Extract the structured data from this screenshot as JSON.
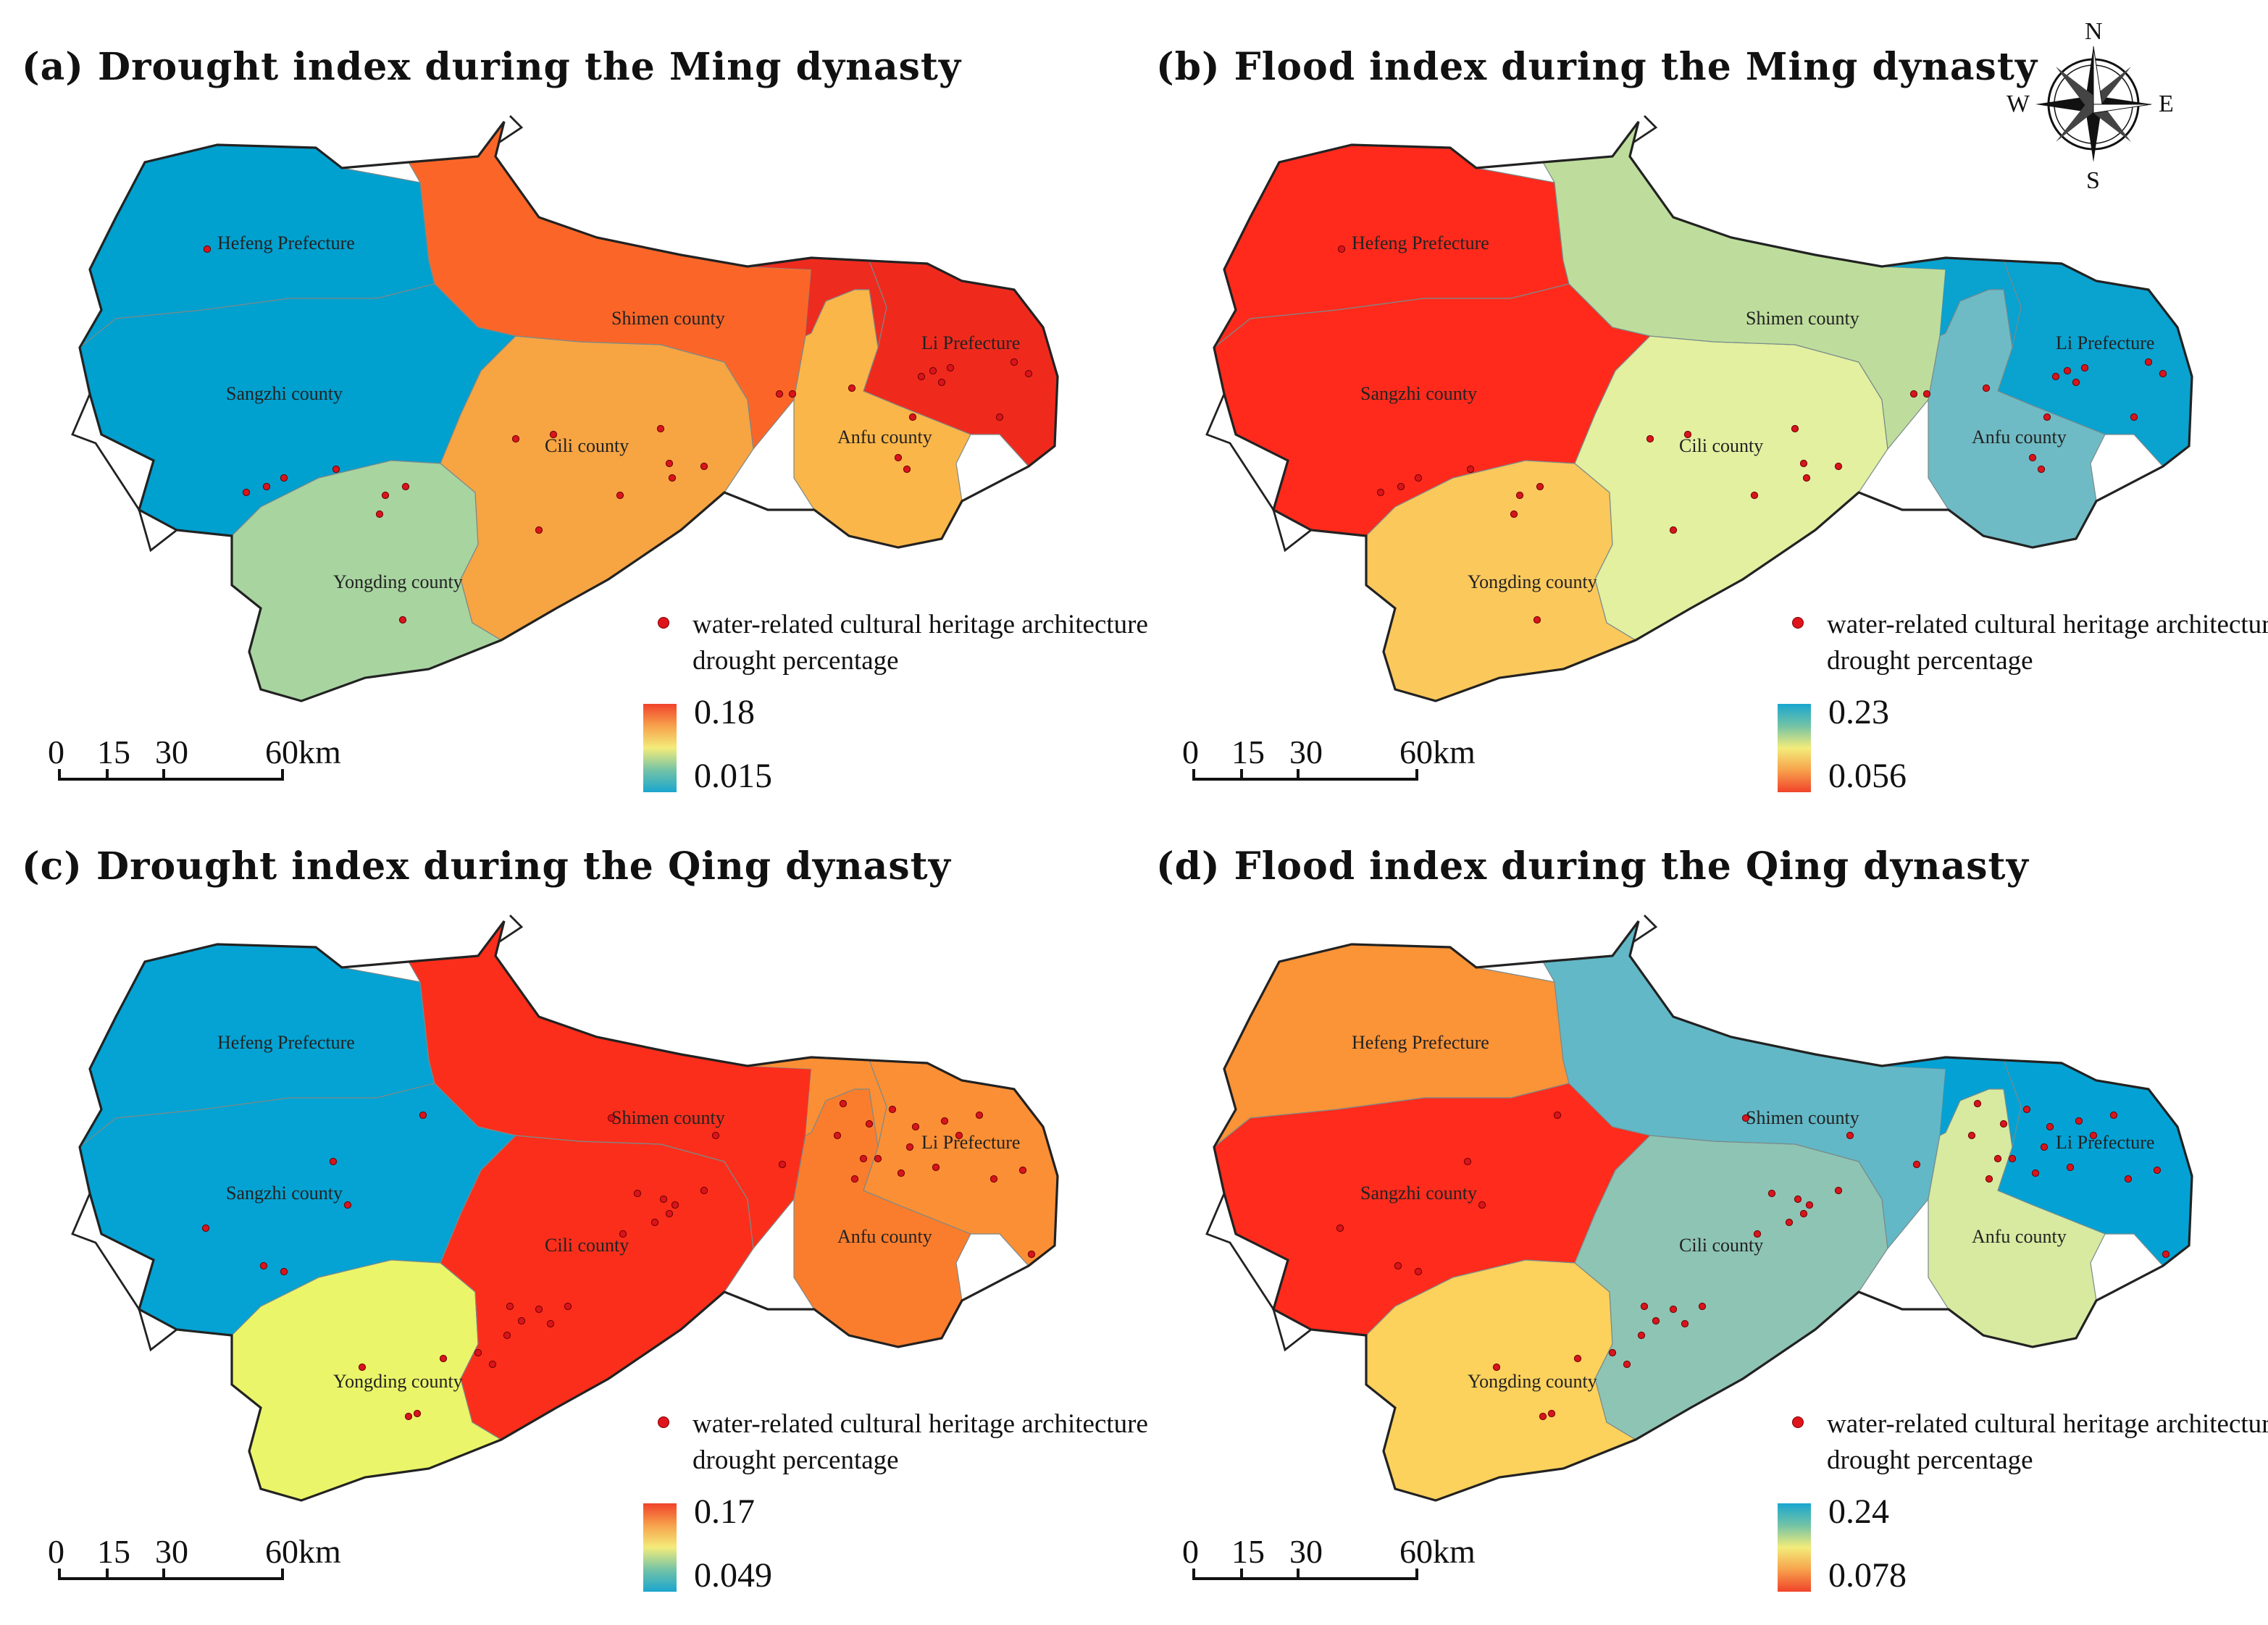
{
  "compass": {
    "n": "N",
    "s": "S",
    "e": "E",
    "w": "W"
  },
  "regions": {
    "hefeng": "Hefeng Prefecture",
    "sangzhi": "Sangzhi county",
    "yongding": "Yongding county",
    "cili": "Cili county",
    "shimen": "Shimen county",
    "anfu": "Anfu county",
    "li": "Li Prefecture"
  },
  "scale_bar": {
    "t0": "0",
    "t1": "15",
    "t2": "30",
    "t3": "60km"
  },
  "legend_points": "water-related cultural heritage architecture drought percentage",
  "panels": [
    {
      "id": "a",
      "title": "(a) Drought index during the Ming dynasty",
      "legend_max": "0.18",
      "legend_min": "0.015",
      "ramp": "drought",
      "fills": {
        "hefeng": "#00a0cf",
        "sangzhi": "#00a0cf",
        "yongding": "#a8d4a0",
        "cili": "#f7a443",
        "shimen": "#fb6628",
        "anfu": "#fbb649",
        "li": "#ef2a1d",
        "shimen_east": "#ee2b1f"
      },
      "dots": [
        [
          143,
          172
        ],
        [
          170,
          340
        ],
        [
          184,
          336
        ],
        [
          196,
          330
        ],
        [
          232,
          324
        ],
        [
          262,
          355
        ],
        [
          266,
          342
        ],
        [
          280,
          336
        ],
        [
          278,
          428
        ],
        [
          372,
          366
        ],
        [
          356,
          303
        ],
        [
          382,
          300
        ],
        [
          428,
          342
        ],
        [
          456,
          296
        ],
        [
          462,
          320
        ],
        [
          464,
          330
        ],
        [
          486,
          322
        ],
        [
          538,
          272
        ],
        [
          547,
          272
        ],
        [
          588,
          268
        ],
        [
          620,
          316
        ],
        [
          626,
          324
        ],
        [
          630,
          288
        ],
        [
          636,
          260
        ],
        [
          644,
          256
        ],
        [
          650,
          264
        ],
        [
          656,
          254
        ],
        [
          690,
          288
        ],
        [
          700,
          250
        ],
        [
          710,
          258
        ]
      ]
    },
    {
      "id": "b",
      "title": "(b) Flood index during the Ming dynasty",
      "legend_max": "0.23",
      "legend_min": "0.056",
      "ramp": "flood",
      "fills": {
        "hefeng": "#ff2a1c",
        "sangzhi": "#ff2a1c",
        "yongding": "#fbc85c",
        "cili": "#e2f0a0",
        "shimen": "#bedd9c",
        "anfu": "#6fbbc5",
        "li": "#0aa2cf",
        "shimen_east": "#0aa2cf"
      },
      "dots": [
        [
          143,
          172
        ],
        [
          170,
          340
        ],
        [
          184,
          336
        ],
        [
          196,
          330
        ],
        [
          232,
          324
        ],
        [
          262,
          355
        ],
        [
          266,
          342
        ],
        [
          280,
          336
        ],
        [
          278,
          428
        ],
        [
          372,
          366
        ],
        [
          356,
          303
        ],
        [
          382,
          300
        ],
        [
          428,
          342
        ],
        [
          456,
          296
        ],
        [
          462,
          320
        ],
        [
          464,
          330
        ],
        [
          486,
          322
        ],
        [
          538,
          272
        ],
        [
          547,
          272
        ],
        [
          588,
          268
        ],
        [
          620,
          316
        ],
        [
          626,
          324
        ],
        [
          630,
          288
        ],
        [
          636,
          260
        ],
        [
          644,
          256
        ],
        [
          650,
          264
        ],
        [
          656,
          254
        ],
        [
          690,
          288
        ],
        [
          700,
          250
        ],
        [
          710,
          258
        ]
      ]
    },
    {
      "id": "c",
      "title": "(c) Drought index during the Qing dynasty",
      "legend_max": "0.17",
      "legend_min": "0.049",
      "ramp": "drought",
      "fills": {
        "hefeng": "#04a3d3",
        "sangzhi": "#04a3d3",
        "yongding": "#ebf56a",
        "cili": "#fb2e1b",
        "shimen": "#fb2e1b",
        "anfu": "#fa7d2d",
        "li": "#fb8f35",
        "shimen_east": "#fb8f35"
      },
      "dots": [
        [
          142,
          296
        ],
        [
          182,
          322
        ],
        [
          196,
          326
        ],
        [
          230,
          250
        ],
        [
          240,
          280
        ],
        [
          250,
          392
        ],
        [
          282,
          426
        ],
        [
          288,
          424
        ],
        [
          292,
          218
        ],
        [
          306,
          386
        ],
        [
          330,
          382
        ],
        [
          340,
          390
        ],
        [
          350,
          370
        ],
        [
          352,
          350
        ],
        [
          360,
          360
        ],
        [
          372,
          352
        ],
        [
          380,
          362
        ],
        [
          392,
          350
        ],
        [
          422,
          220
        ],
        [
          430,
          300
        ],
        [
          440,
          272
        ],
        [
          452,
          292
        ],
        [
          458,
          276
        ],
        [
          462,
          286
        ],
        [
          466,
          280
        ],
        [
          486,
          270
        ],
        [
          494,
          232
        ],
        [
          540,
          252
        ],
        [
          578,
          232
        ],
        [
          582,
          210
        ],
        [
          590,
          262
        ],
        [
          596,
          248
        ],
        [
          600,
          224
        ],
        [
          606,
          248
        ],
        [
          616,
          214
        ],
        [
          622,
          258
        ],
        [
          628,
          240
        ],
        [
          632,
          226
        ],
        [
          646,
          254
        ],
        [
          652,
          222
        ],
        [
          662,
          232
        ],
        [
          676,
          218
        ],
        [
          686,
          262
        ],
        [
          706,
          256
        ],
        [
          712,
          314
        ]
      ]
    },
    {
      "id": "d",
      "title": "(d) Flood index during the Qing dynasty",
      "legend_max": "0.24",
      "legend_min": "0.078",
      "ramp": "flood",
      "fills": {
        "hefeng": "#fb9337",
        "sangzhi": "#ff2b1c",
        "yongding": "#fcd15c",
        "cili": "#8ec4b4",
        "shimen": "#62b8c6",
        "anfu": "#d7eaa0",
        "li": "#04a2d4",
        "shimen_east": "#04a2d4"
      },
      "dots": [
        [
          142,
          296
        ],
        [
          182,
          322
        ],
        [
          196,
          326
        ],
        [
          230,
          250
        ],
        [
          240,
          280
        ],
        [
          250,
          392
        ],
        [
          282,
          426
        ],
        [
          288,
          424
        ],
        [
          292,
          218
        ],
        [
          306,
          386
        ],
        [
          330,
          382
        ],
        [
          340,
          390
        ],
        [
          350,
          370
        ],
        [
          352,
          350
        ],
        [
          360,
          360
        ],
        [
          372,
          352
        ],
        [
          380,
          362
        ],
        [
          392,
          350
        ],
        [
          422,
          220
        ],
        [
          430,
          300
        ],
        [
          440,
          272
        ],
        [
          452,
          292
        ],
        [
          458,
          276
        ],
        [
          462,
          286
        ],
        [
          466,
          280
        ],
        [
          486,
          270
        ],
        [
          494,
          232
        ],
        [
          540,
          252
        ],
        [
          578,
          232
        ],
        [
          582,
          210
        ],
        [
          590,
          262
        ],
        [
          596,
          248
        ],
        [
          600,
          224
        ],
        [
          606,
          248
        ],
        [
          616,
          214
        ],
        [
          622,
          258
        ],
        [
          628,
          240
        ],
        [
          632,
          226
        ],
        [
          646,
          254
        ],
        [
          652,
          222
        ],
        [
          662,
          232
        ],
        [
          676,
          218
        ],
        [
          686,
          262
        ],
        [
          706,
          256
        ],
        [
          712,
          314
        ]
      ]
    }
  ]
}
